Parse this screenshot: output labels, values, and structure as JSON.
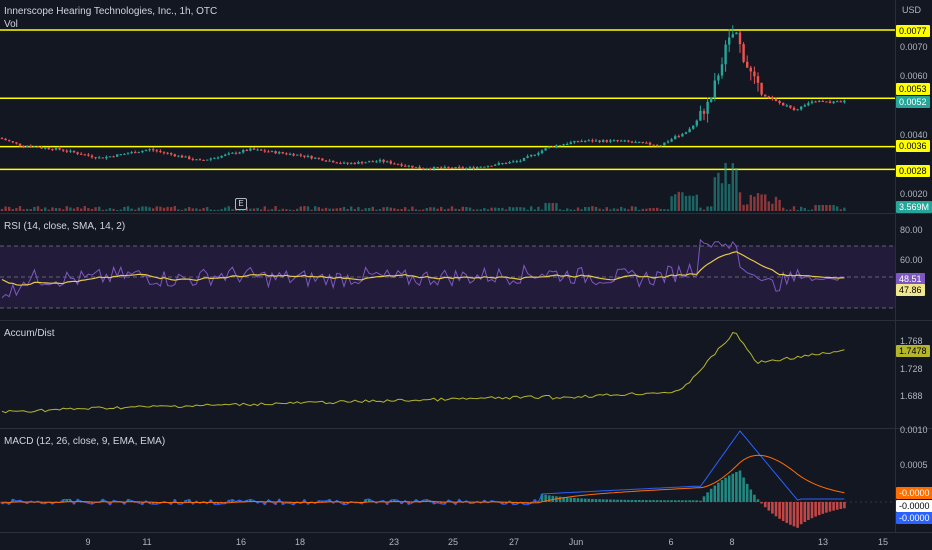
{
  "header": {
    "title": "Innerscope Hearing Technologies, Inc., 1h, OTC",
    "vol_label": "Vol",
    "currency": "USD"
  },
  "event_badge": "E",
  "colors": {
    "background": "#131722",
    "up": "#26a69a",
    "down": "#ef5350",
    "hline": "#ffff00",
    "rsi_line": "#7e57c2",
    "rsi_ma": "#e6c84a",
    "rsi_band": "#2a1f45",
    "ad_line": "#b5b52a",
    "macd_line": "#2962ff",
    "signal_line": "#ff6d00"
  },
  "price_pane": {
    "y_axis_labels": [
      "0.0070",
      "0.0060",
      "0.0040",
      "0.0020"
    ],
    "price_tags": [
      {
        "text": "0.0077",
        "bg": "#ffff00",
        "fg": "#000000"
      },
      {
        "text": "0.0053",
        "bg": "#ffff00",
        "fg": "#000000"
      },
      {
        "text": "0.0052",
        "bg": "#26a69a",
        "fg": "#ffffff"
      },
      {
        "text": "0.0036",
        "bg": "#ffff00",
        "fg": "#000000"
      },
      {
        "text": "0.0028",
        "bg": "#ffff00",
        "fg": "#000000"
      },
      {
        "text": "3.569M",
        "bg": "#26a69a",
        "fg": "#ffffff"
      }
    ]
  },
  "rsi_pane": {
    "legend": "RSI (14, close, SMA, 14, 2)",
    "y_axis_labels": [
      "80.00",
      "60.00"
    ],
    "tags": [
      {
        "text": "48.51",
        "bg": "#7e57c2",
        "fg": "#ffffff"
      },
      {
        "text": "47.86",
        "bg": "#f0e68c",
        "fg": "#000000"
      }
    ]
  },
  "ad_pane": {
    "legend": "Accum/Dist",
    "y_axis_labels": [
      "1.768",
      "1.728",
      "1.688"
    ],
    "tags": [
      {
        "text": "1.7478",
        "bg": "#b5b52a",
        "fg": "#000000"
      }
    ]
  },
  "macd_pane": {
    "legend": "MACD (12, 26, close, 9, EMA, EMA)",
    "y_axis_labels": [
      "0.0010",
      "0.0005"
    ],
    "tags": [
      {
        "text": "-0.0000",
        "bg": "#ff6d00",
        "fg": "#ffffff"
      },
      {
        "text": "-0.0000",
        "bg": "#ffffff",
        "fg": "#000000"
      },
      {
        "text": "-0.0000",
        "bg": "#2962ff",
        "fg": "#ffffff"
      }
    ]
  },
  "x_axis_labels": [
    "9",
    "11",
    "16",
    "18",
    "23",
    "25",
    "27",
    "Jun",
    "6",
    "8",
    "13",
    "15"
  ],
  "chart_data": {
    "type": "candlestick",
    "title": "Innerscope Hearing Technologies, Inc., 1h, OTC",
    "horizontal_levels": [
      0.0077,
      0.0053,
      0.0036,
      0.0028
    ],
    "last_price": 0.0052,
    "last_volume": "3.569M",
    "close_profile": [
      {
        "x": 0,
        "close": 0.0039
      },
      {
        "x": 20,
        "close": 0.00365
      },
      {
        "x": 60,
        "close": 0.0035
      },
      {
        "x": 100,
        "close": 0.0032
      },
      {
        "x": 150,
        "close": 0.0035
      },
      {
        "x": 200,
        "close": 0.0031
      },
      {
        "x": 250,
        "close": 0.0035
      },
      {
        "x": 300,
        "close": 0.0033
      },
      {
        "x": 345,
        "close": 0.003
      },
      {
        "x": 380,
        "close": 0.0031
      },
      {
        "x": 420,
        "close": 0.00285
      },
      {
        "x": 470,
        "close": 0.00285
      },
      {
        "x": 520,
        "close": 0.0031
      },
      {
        "x": 550,
        "close": 0.0036
      },
      {
        "x": 580,
        "close": 0.0038
      },
      {
        "x": 620,
        "close": 0.0038
      },
      {
        "x": 660,
        "close": 0.00365
      },
      {
        "x": 690,
        "close": 0.0042
      },
      {
        "x": 710,
        "close": 0.0052
      },
      {
        "x": 725,
        "close": 0.007
      },
      {
        "x": 735,
        "close": 0.0077
      },
      {
        "x": 745,
        "close": 0.0066
      },
      {
        "x": 760,
        "close": 0.0055
      },
      {
        "x": 775,
        "close": 0.0052
      },
      {
        "x": 795,
        "close": 0.0049
      },
      {
        "x": 815,
        "close": 0.0052
      },
      {
        "x": 830,
        "close": 0.00515
      },
      {
        "x": 848,
        "close": 0.0052
      }
    ],
    "rsi": {
      "legend": "RSI (14, close, SMA, 14, 2)",
      "last": 48.51,
      "ma_last": 47.86,
      "levels": [
        70,
        50,
        30
      ],
      "y_ticks": [
        80,
        60
      ]
    },
    "accum_dist": {
      "legend": "Accum/Dist",
      "last": 1.7478,
      "y_ticks": [
        1.768,
        1.728,
        1.688
      ]
    },
    "macd": {
      "legend": "MACD (12, 26, close, 9, EMA, EMA)",
      "y_ticks": [
        0.001,
        0.0005
      ],
      "last_values": [
        "-0.0000",
        "-0.0000",
        "-0.0000"
      ]
    },
    "x_ticks": [
      "9",
      "11",
      "16",
      "18",
      "23",
      "25",
      "27",
      "Jun",
      "6",
      "8",
      "13",
      "15"
    ]
  }
}
